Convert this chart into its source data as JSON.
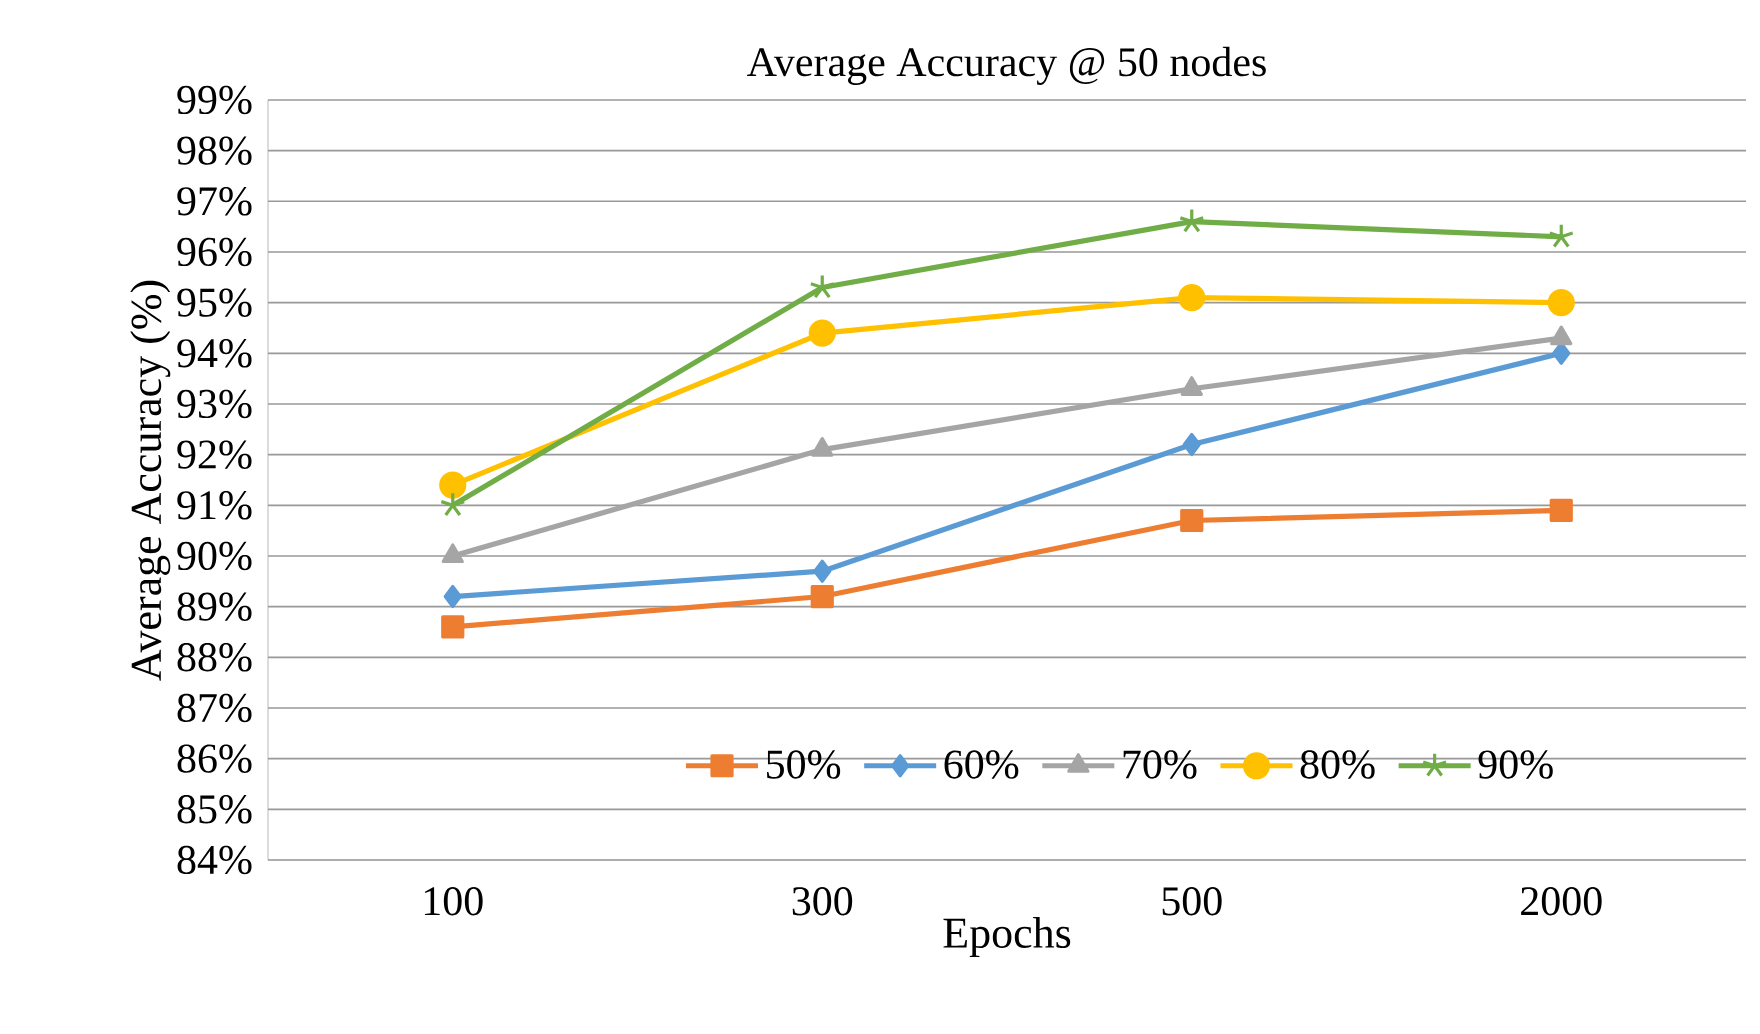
{
  "chart_data": {
    "type": "line",
    "title": "Average Accuracy @ 50 nodes",
    "xlabel": "Epochs",
    "ylabel": "Average Accuracy (%)",
    "categories": [
      "100",
      "300",
      "500",
      "2000"
    ],
    "ylim": [
      84,
      99
    ],
    "yticks": [
      {
        "value": 84,
        "label": "84%"
      },
      {
        "value": 85,
        "label": "85%"
      },
      {
        "value": 86,
        "label": "86%"
      },
      {
        "value": 87,
        "label": "87%"
      },
      {
        "value": 88,
        "label": "88%"
      },
      {
        "value": 89,
        "label": "89%"
      },
      {
        "value": 90,
        "label": "90%"
      },
      {
        "value": 91,
        "label": "91%"
      },
      {
        "value": 92,
        "label": "92%"
      },
      {
        "value": 93,
        "label": "93%"
      },
      {
        "value": 94,
        "label": "94%"
      },
      {
        "value": 95,
        "label": "95%"
      },
      {
        "value": 96,
        "label": "96%"
      },
      {
        "value": 97,
        "label": "97%"
      },
      {
        "value": 98,
        "label": "98%"
      },
      {
        "value": 99,
        "label": "99%"
      }
    ],
    "grid": "y",
    "legend": "bottom",
    "line_style": "solid",
    "series": [
      {
        "name": "50%",
        "color": "#ed7d31",
        "marker": "square",
        "values": [
          88.6,
          89.2,
          90.7,
          90.9
        ]
      },
      {
        "name": "60%",
        "color": "#5b9bd5",
        "marker": "diamond",
        "values": [
          89.2,
          89.7,
          92.2,
          94.0
        ]
      },
      {
        "name": "70%",
        "color": "#a5a5a5",
        "marker": "triangle",
        "values": [
          90.0,
          92.1,
          93.3,
          94.3
        ]
      },
      {
        "name": "80%",
        "color": "#ffc000",
        "marker": "circle",
        "values": [
          91.4,
          94.4,
          95.1,
          95.0
        ]
      },
      {
        "name": "90%",
        "color": "#70ad47",
        "marker": "cross",
        "values": [
          91.0,
          95.3,
          96.6,
          96.3
        ]
      }
    ]
  }
}
